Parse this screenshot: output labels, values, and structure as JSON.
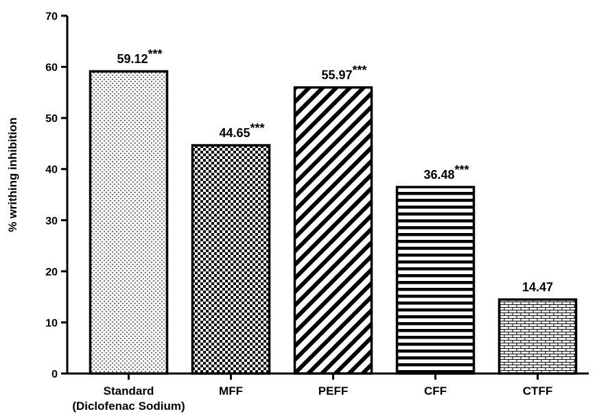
{
  "chart_data": {
    "type": "bar",
    "title": "",
    "xlabel": "",
    "ylabel": "% writhing inhibition",
    "ylim": [
      0,
      70
    ],
    "yticks": [
      0,
      10,
      20,
      30,
      40,
      50,
      60,
      70
    ],
    "grid": false,
    "legend": "none",
    "categories": [
      [
        "Standard",
        "(Diclofenac Sodium)"
      ],
      [
        "MFF"
      ],
      [
        "PEFF"
      ],
      [
        "CFF"
      ],
      [
        "CTFF"
      ]
    ],
    "values": [
      59.12,
      44.65,
      55.97,
      36.48,
      14.47
    ],
    "value_labels": [
      "59.12",
      "44.65",
      "55.97",
      "36.48",
      "14.47"
    ],
    "significance": [
      "***",
      "***",
      "***",
      "***",
      ""
    ],
    "patterns": [
      "dots",
      "checker",
      "diagonal-stripes",
      "horizontal-stripes",
      "bricks"
    ],
    "colors": {
      "bar_stroke": "#000000",
      "bar_fill": "#ffffff",
      "axis": "#000000"
    }
  }
}
